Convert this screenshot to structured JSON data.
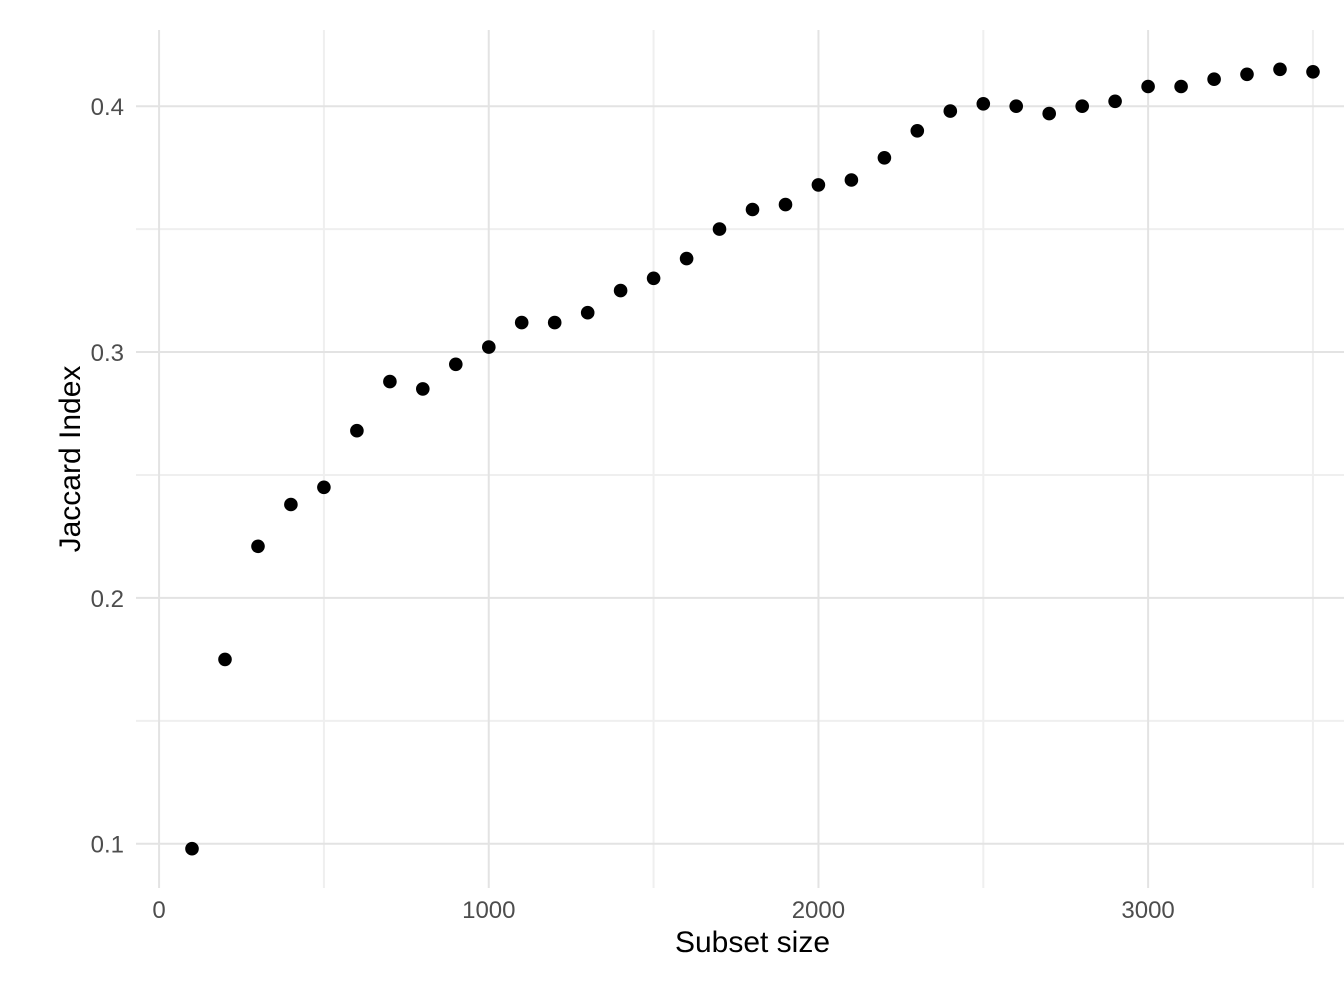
{
  "chart_data": {
    "type": "scatter",
    "title": "",
    "xlabel": "Subset size",
    "ylabel": "Jaccard Index",
    "x": [
      100,
      200,
      300,
      400,
      500,
      600,
      700,
      800,
      900,
      1000,
      1100,
      1200,
      1300,
      1400,
      1500,
      1600,
      1700,
      1800,
      1900,
      2000,
      2100,
      2200,
      2300,
      2400,
      2500,
      2600,
      2700,
      2800,
      2900,
      3000,
      3100,
      3200,
      3300,
      3400,
      3500
    ],
    "y": [
      0.098,
      0.175,
      0.221,
      0.238,
      0.245,
      0.268,
      0.288,
      0.285,
      0.295,
      0.302,
      0.312,
      0.312,
      0.316,
      0.325,
      0.33,
      0.338,
      0.35,
      0.358,
      0.36,
      0.368,
      0.37,
      0.379,
      0.39,
      0.398,
      0.401,
      0.4,
      0.397,
      0.4,
      0.402,
      0.408,
      0.408,
      0.411,
      0.413,
      0.415,
      0.414
    ],
    "xlim": [
      -70,
      3670
    ],
    "ylim": [
      0.082,
      0.431
    ],
    "x_ticks": [
      {
        "value": 0,
        "label": "0"
      },
      {
        "value": 1000,
        "label": "1000"
      },
      {
        "value": 2000,
        "label": "2000"
      },
      {
        "value": 3000,
        "label": "3000"
      }
    ],
    "y_ticks": [
      {
        "value": 0.1,
        "label": "0.1"
      },
      {
        "value": 0.2,
        "label": "0.2"
      },
      {
        "value": 0.3,
        "label": "0.3"
      },
      {
        "value": 0.4,
        "label": "0.4"
      }
    ],
    "x_minor_ticks": [
      500,
      1500,
      2500,
      3500
    ],
    "y_minor_ticks": [
      0.15,
      0.25,
      0.35
    ],
    "grid": "on",
    "legend": "none",
    "colors": {
      "background": "#FFFFFF",
      "point": "#000000",
      "major_grid": "#E3E3E3",
      "minor_grid": "#EFEFEF",
      "tick_label": "#4D4D4D",
      "axis_title": "#000000"
    }
  }
}
